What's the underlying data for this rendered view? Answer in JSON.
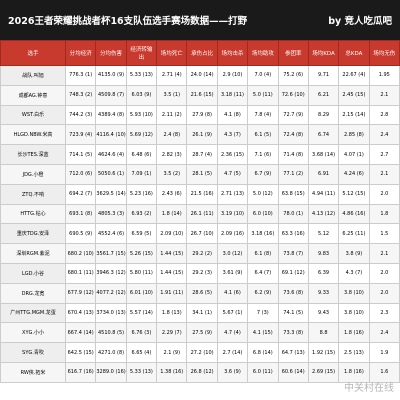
{
  "header": {
    "title": "2026王者荣耀挑战者杯16支队伍选手赛场数据——打野",
    "byline": "by 竞人吃瓜吧"
  },
  "table": {
    "columns": [
      "选手",
      "分均经济",
      "分均伤害",
      "经济转输出",
      "场均死亡",
      "承伤占比",
      "场均击杀",
      "场均助攻",
      "参团率",
      "场均KDA",
      "总KDA",
      "场均无伤"
    ],
    "rows": [
      [
        "战队.叫旭",
        "776.3 (1)",
        "4135.0 (9)",
        "5.33 (13)",
        "2.71 (4)",
        "24.0 (14)",
        "2.9 (10)",
        "7.0 (4)",
        "75.2 (6)",
        "9.71",
        "22.67 (4)",
        "1.95"
      ],
      [
        "成都AG.钟意",
        "748.3 (2)",
        "4509.8 (7)",
        "6.03 (9)",
        "3.5 (1)",
        "21.6 (15)",
        "3.18 (11)",
        "5.0 (11)",
        "72.6 (10)",
        "6.21",
        "2.45 (15)",
        "2.1"
      ],
      [
        "WST.白乐",
        "744.2 (3)",
        "4389.4 (8)",
        "5.93 (10)",
        "2.11 (2)",
        "27.9 (8)",
        "4.1 (8)",
        "7.8 (4)",
        "72.7 (9)",
        "8.29",
        "2.15 (14)",
        "2.8"
      ],
      [
        "HLGD.NBW.米高",
        "723.9 (4)",
        "4116.4 (10)",
        "5.69 (12)",
        "2.4 (8)",
        "26.1 (9)",
        "4.3 (7)",
        "6.1 (5)",
        "72.4 (8)",
        "6.74",
        "2.85 (8)",
        "2.4"
      ],
      [
        "长沙TES.深蓝",
        "714.1 (5)",
        "4624.6 (4)",
        "6.48 (6)",
        "2.82 (3)",
        "28.7 (4)",
        "2.36 (15)",
        "7.1 (6)",
        "71.4 (8)",
        "3.68 (14)",
        "4.07 (1)",
        "2.7"
      ],
      [
        "JDG.小橙",
        "712.0 (6)",
        "5050.6 (1)",
        "7.09 (1)",
        "3.5 (2)",
        "28.1 (5)",
        "4.7 (5)",
        "6.7 (9)",
        "77.1 (2)",
        "6.91",
        "4.24 (6)",
        "2.1"
      ],
      [
        "ZTQ.不响",
        "694.2 (7)",
        "3629.5 (14)",
        "5.23 (16)",
        "2.43 (6)",
        "21.5 (16)",
        "2.71 (13)",
        "5.0 (12)",
        "63.8 (15)",
        "4.94 (11)",
        "5.12 (15)",
        "2.0"
      ],
      [
        "HTTG.钻心",
        "693.1 (8)",
        "4805.3 (3)",
        "6.93 (2)",
        "1.8 (14)",
        "26.1 (11)",
        "3.19 (10)",
        "6.0 (10)",
        "78.0 (1)",
        "4.13 (12)",
        "4.86 (16)",
        "1.8"
      ],
      [
        "重庆TDG.安泽",
        "690.5 (9)",
        "4552.4 (6)",
        "6.59 (5)",
        "2.09 (10)",
        "26.7 (10)",
        "2.09 (16)",
        "3.18 (16)",
        "63.3 (16)",
        "5.12",
        "6.25 (11)",
        "1.5"
      ],
      [
        "深圳RGM.紫泥",
        "680.2 (10)",
        "3561.7 (15)",
        "5.26 (15)",
        "1.44 (15)",
        "29.2 (2)",
        "3.0 (12)",
        "6.1 (8)",
        "73.8 (7)",
        "9.83",
        "3.8 (9)",
        "2.1"
      ],
      [
        "LGD.小谷",
        "680.1 (11)",
        "3946.3 (12)",
        "5.80 (11)",
        "1.44 (15)",
        "29.2 (3)",
        "3.61 (9)",
        "6.4 (7)",
        "69.1 (12)",
        "6.39",
        "4.3 (7)",
        "2.0"
      ],
      [
        "DRG.龙宽",
        "677.9 (12)",
        "4077.2 (12)",
        "6.01 (10)",
        "1.91 (11)",
        "28.6 (5)",
        "4.1 (6)",
        "6.2 (9)",
        "73.6 (8)",
        "9.33",
        "3.8 (10)",
        "2.0"
      ],
      [
        "广州TTG.MGM.龙蛋",
        "670.4 (13)",
        "3734.0 (13)",
        "5.57 (14)",
        "1.8 (13)",
        "34.1 (1)",
        "5.67 (1)",
        "7 (3)",
        "74.1 (5)",
        "9.43",
        "3.8 (10)",
        "2.3"
      ],
      [
        "XYG.小小",
        "667.4 (14)",
        "4510.8 (5)",
        "6.76 (3)",
        "2.29 (7)",
        "27.5 (9)",
        "4.7 (4)",
        "4.1 (15)",
        "73.3 (8)",
        "8.8",
        "1.8 (16)",
        "2.4"
      ],
      [
        "SYG.青吹",
        "642.5 (15)",
        "4271.0 (8)",
        "6.65 (4)",
        "2.1 (9)",
        "27.2 (10)",
        "2.7 (14)",
        "6.8 (14)",
        "64.7 (13)",
        "1.92 (15)",
        "2.5 (13)",
        "1.9"
      ],
      [
        "RW侠.拓米",
        "616.7 (16)",
        "3289.0 (16)",
        "5.33 (13)",
        "1.38 (16)",
        "26.8 (12)",
        "3.6 (9)",
        "6.0 (11)",
        "60.6 (14)",
        "2.69 (15)",
        "1.8 (16)",
        "1.6"
      ]
    ]
  },
  "watermark": "中关村在线"
}
